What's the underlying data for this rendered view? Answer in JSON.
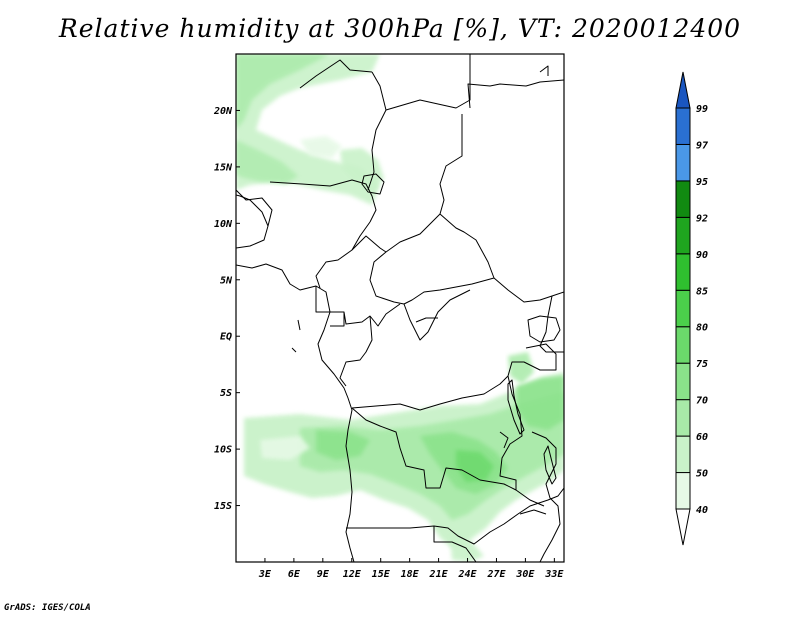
{
  "title": "Relative humidity at 300hPa [%], VT: 2020012400",
  "credit": "GrADS: IGES/COLA",
  "map": {
    "variable": "Relative humidity",
    "level": "300hPa",
    "units": "%",
    "valid_time": "2020012400",
    "lon_range": [
      0,
      34
    ],
    "lat_range": [
      -20,
      25
    ],
    "lat_labels": [
      "20N",
      "15N",
      "10N",
      "5N",
      "EQ",
      "5S",
      "10S",
      "15S"
    ],
    "lon_labels": [
      "3E",
      "6E",
      "9E",
      "12E",
      "15E",
      "18E",
      "21E",
      "24E",
      "27E",
      "30E",
      "33E"
    ]
  },
  "colorbar": {
    "levels": [
      "40",
      "50",
      "60",
      "70",
      "75",
      "80",
      "85",
      "90",
      "92",
      "95",
      "97",
      "99"
    ],
    "colors": [
      "#ffffff",
      "#e6f9e6",
      "#c9f2c9",
      "#a8eaa8",
      "#8ae28a",
      "#6bd96b",
      "#4bcf4b",
      "#2fbf2f",
      "#1fa51f",
      "#118a11",
      "#4a98e8",
      "#2a70d2",
      "#1a56c0"
    ]
  }
}
